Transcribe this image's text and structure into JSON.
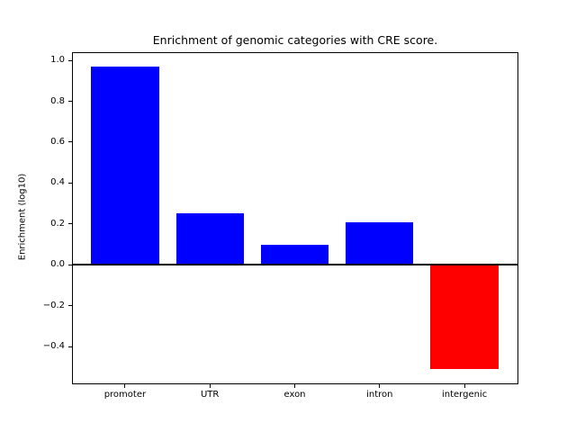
{
  "figure": {
    "background_color": "#ffffff",
    "axis_color": "#000000"
  },
  "chart_data": {
    "type": "bar",
    "title": "Enrichment of genomic categories with CRE score.",
    "xlabel": "",
    "ylabel": "Enrichment (log10)",
    "categories": [
      "promoter",
      "UTR",
      "exon",
      "intron",
      "intergenic"
    ],
    "values": [
      0.97,
      0.25,
      0.1,
      0.21,
      -0.51
    ],
    "bar_colors": [
      "#0000ff",
      "#0000ff",
      "#0000ff",
      "#0000ff",
      "#ff0000"
    ],
    "positive_color": "#0000ff",
    "negative_color": "#ff0000",
    "bar_width": 0.8,
    "ylim": [
      -0.585,
      1.04
    ],
    "xlim": [
      -0.625,
      4.635
    ],
    "yticks": [
      1.0,
      0.8,
      0.6,
      0.4,
      0.2,
      0.0,
      -0.2,
      -0.4
    ],
    "ytick_labels": [
      "1.0",
      "0.8",
      "0.6",
      "0.4",
      "0.2",
      "0.0",
      "−0.2",
      "−0.4"
    ],
    "grid": false,
    "legend": false,
    "zero_line": true
  }
}
